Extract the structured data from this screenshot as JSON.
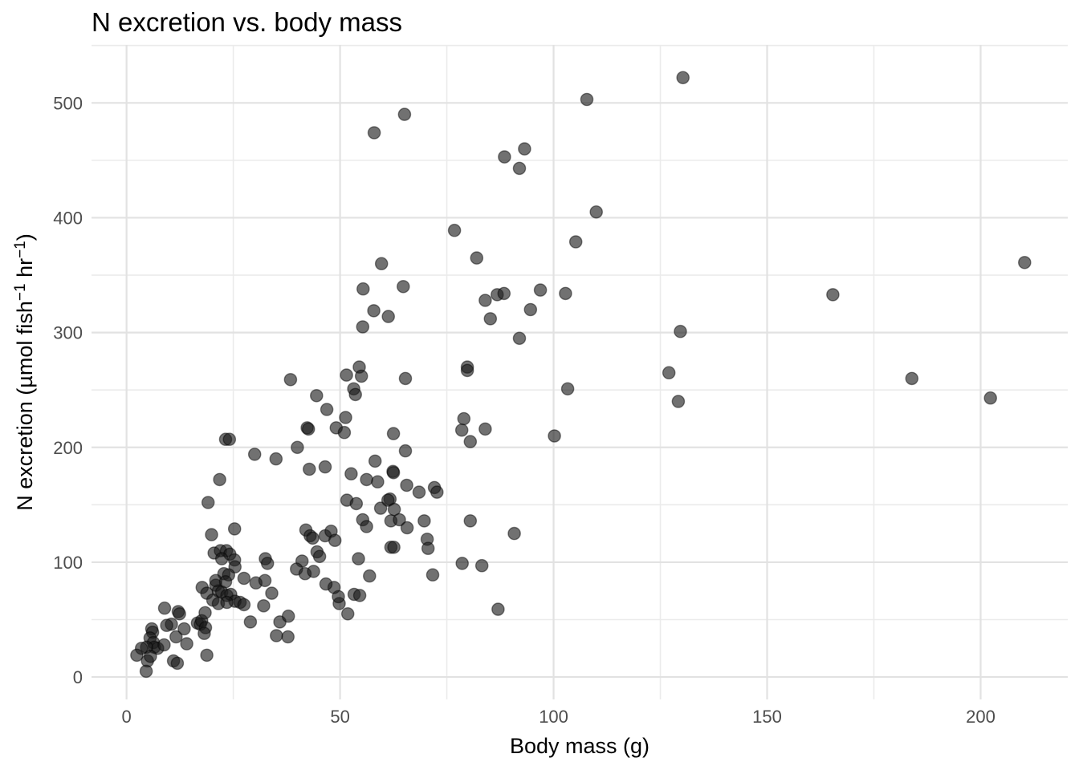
{
  "title": "N excretion vs. body mass",
  "axes": {
    "x": {
      "label": "Body mass (g)",
      "major_ticks": [
        0,
        50,
        100,
        150,
        200
      ],
      "minor_ticks": [
        25,
        75,
        125,
        175
      ],
      "range": [
        -8.2,
        220.4
      ]
    },
    "y": {
      "label": "N excretion (µmol fish⁻¹ hr⁻¹)",
      "label_parts": [
        {
          "t": "N excretion (µmol fish",
          "sup": false
        },
        {
          "t": "−1",
          "sup": true
        },
        {
          "t": " hr",
          "sup": false
        },
        {
          "t": "−1",
          "sup": true
        },
        {
          "t": ")",
          "sup": false
        }
      ],
      "major_ticks": [
        0,
        100,
        200,
        300,
        400,
        500
      ],
      "minor_ticks": [
        50,
        150,
        250,
        350,
        450,
        550
      ],
      "range": [
        -19.5,
        550.5
      ]
    }
  },
  "style": {
    "background": "#ffffff",
    "grid_major_color": "#e2e2e2",
    "grid_minor_color": "#ebebeb",
    "point_color": "#1a1a1a",
    "point_fill_opacity": 0.62,
    "point_stroke_opacity": 0.45,
    "point_radius": 7.6,
    "tick_label_color": "#4d4d4d"
  },
  "chart_data": {
    "type": "scatter",
    "title": "N excretion vs. body mass",
    "xlabel": "Body mass (g)",
    "ylabel": "N excretion (µmol fish⁻¹ hr⁻¹)",
    "xlim": [
      -8.2,
      220.4
    ],
    "ylim": [
      -19.5,
      550.5
    ],
    "grid": "major+minor",
    "legend": "none",
    "points": [
      [
        8.9,
        60
      ],
      [
        12.1,
        57
      ],
      [
        12.4,
        55
      ],
      [
        10.5,
        46
      ],
      [
        9.4,
        45
      ],
      [
        11.6,
        35
      ],
      [
        13.5,
        42
      ],
      [
        16.6,
        47
      ],
      [
        17.3,
        46
      ],
      [
        17.6,
        49
      ],
      [
        18.5,
        43
      ],
      [
        18.2,
        38
      ],
      [
        14.1,
        29
      ],
      [
        5.9,
        42
      ],
      [
        6.1,
        39
      ],
      [
        5.5,
        34
      ],
      [
        6.3,
        30
      ],
      [
        6.5,
        26
      ],
      [
        7.3,
        25
      ],
      [
        4.7,
        26
      ],
      [
        3.5,
        25
      ],
      [
        2.4,
        19
      ],
      [
        4.9,
        14
      ],
      [
        5.6,
        18
      ],
      [
        4.6,
        5
      ],
      [
        8.8,
        28
      ],
      [
        11,
        14
      ],
      [
        11.9,
        12
      ],
      [
        18.8,
        19
      ],
      [
        17.7,
        78
      ],
      [
        18.8,
        73
      ],
      [
        20.9,
        80
      ],
      [
        21.5,
        75
      ],
      [
        22.3,
        74
      ],
      [
        20.2,
        67
      ],
      [
        21.5,
        64
      ],
      [
        23.5,
        71
      ],
      [
        24.4,
        72
      ],
      [
        25.4,
        66
      ],
      [
        26.6,
        65
      ],
      [
        23.5,
        65
      ],
      [
        27.5,
        63
      ],
      [
        18.4,
        56
      ],
      [
        29,
        48
      ],
      [
        19.9,
        124
      ],
      [
        25.3,
        129
      ],
      [
        20.5,
        108
      ],
      [
        22,
        110
      ],
      [
        23.4,
        110
      ],
      [
        24.2,
        107
      ],
      [
        22.3,
        103
      ],
      [
        25.3,
        102
      ],
      [
        25.4,
        96
      ],
      [
        22.8,
        90
      ],
      [
        23.9,
        89
      ],
      [
        20.9,
        84
      ],
      [
        23.2,
        83
      ],
      [
        27.5,
        86
      ],
      [
        30.3,
        82
      ],
      [
        23.2,
        207
      ],
      [
        24.1,
        207
      ],
      [
        42.3,
        217
      ],
      [
        49.1,
        217
      ],
      [
        51,
        213
      ],
      [
        30,
        194
      ],
      [
        35,
        190
      ],
      [
        40,
        200
      ],
      [
        42.8,
        181
      ],
      [
        46.5,
        183
      ],
      [
        52.6,
        177
      ],
      [
        56.2,
        172
      ],
      [
        21.8,
        172
      ],
      [
        19.1,
        152
      ],
      [
        51.6,
        154
      ],
      [
        53.8,
        151
      ],
      [
        59.5,
        147
      ],
      [
        61.7,
        155
      ],
      [
        55.3,
        137
      ],
      [
        56.2,
        131
      ],
      [
        61.9,
        136
      ],
      [
        61.9,
        113
      ],
      [
        42,
        128
      ],
      [
        43,
        123
      ],
      [
        43.6,
        121
      ],
      [
        46.5,
        123
      ],
      [
        47.9,
        127
      ],
      [
        48.8,
        119
      ],
      [
        44.6,
        109
      ],
      [
        45.2,
        105
      ],
      [
        32.5,
        103
      ],
      [
        33,
        99
      ],
      [
        41.1,
        101
      ],
      [
        39.8,
        94
      ],
      [
        41.8,
        90
      ],
      [
        43.8,
        92
      ],
      [
        32.4,
        84
      ],
      [
        34,
        73
      ],
      [
        32.1,
        62
      ],
      [
        35.9,
        48
      ],
      [
        37.9,
        53
      ],
      [
        35.1,
        36
      ],
      [
        37.8,
        35
      ],
      [
        51.8,
        55
      ],
      [
        49.8,
        64
      ],
      [
        49.6,
        70
      ],
      [
        48.6,
        78
      ],
      [
        46.7,
        81
      ],
      [
        53.3,
        72
      ],
      [
        54.6,
        71
      ],
      [
        56.9,
        88
      ],
      [
        54.3,
        103
      ],
      [
        55.4,
        338
      ],
      [
        64.8,
        340
      ],
      [
        57.9,
        319
      ],
      [
        61.3,
        314
      ],
      [
        55.3,
        305
      ],
      [
        84,
        328
      ],
      [
        86.8,
        333
      ],
      [
        88.4,
        334
      ],
      [
        85.2,
        312
      ],
      [
        38.4,
        259
      ],
      [
        54.5,
        270
      ],
      [
        55,
        262
      ],
      [
        51.5,
        263
      ],
      [
        65.3,
        260
      ],
      [
        79.8,
        270
      ],
      [
        79.8,
        267
      ],
      [
        53.2,
        251
      ],
      [
        53.6,
        246
      ],
      [
        44.5,
        245
      ],
      [
        46.9,
        233
      ],
      [
        51.3,
        226
      ],
      [
        42.6,
        216
      ],
      [
        62.5,
        212
      ],
      [
        79,
        225
      ],
      [
        78.5,
        215
      ],
      [
        84,
        216
      ],
      [
        80.5,
        205
      ],
      [
        65.3,
        197
      ],
      [
        58.2,
        188
      ],
      [
        107.8,
        503
      ],
      [
        65.1,
        490
      ],
      [
        58,
        474
      ],
      [
        88.5,
        453
      ],
      [
        93.2,
        460
      ],
      [
        92,
        443
      ],
      [
        110,
        405
      ],
      [
        76.8,
        389
      ],
      [
        105.2,
        379
      ],
      [
        82,
        365
      ],
      [
        59.7,
        360
      ],
      [
        96.9,
        337
      ],
      [
        102.8,
        334
      ],
      [
        94.6,
        320
      ],
      [
        92,
        295
      ],
      [
        129.7,
        301
      ],
      [
        127,
        265
      ],
      [
        103.3,
        251
      ],
      [
        129.2,
        240
      ],
      [
        100.2,
        210
      ],
      [
        130.3,
        522
      ],
      [
        210.3,
        361
      ],
      [
        165.4,
        333
      ],
      [
        183.9,
        260
      ],
      [
        202.3,
        243
      ],
      [
        62.4,
        179
      ],
      [
        62.5,
        178
      ],
      [
        58.8,
        170
      ],
      [
        65.6,
        167
      ],
      [
        68.5,
        161
      ],
      [
        72.1,
        165
      ],
      [
        72.7,
        161
      ],
      [
        61.2,
        154
      ],
      [
        62.7,
        146
      ],
      [
        63.9,
        137
      ],
      [
        65.7,
        130
      ],
      [
        69.7,
        136
      ],
      [
        70.4,
        120
      ],
      [
        70.6,
        112
      ],
      [
        62.6,
        113
      ],
      [
        78.6,
        99
      ],
      [
        83.2,
        97
      ],
      [
        80.5,
        136
      ],
      [
        90.8,
        125
      ],
      [
        71.7,
        89
      ],
      [
        87,
        59
      ]
    ]
  }
}
